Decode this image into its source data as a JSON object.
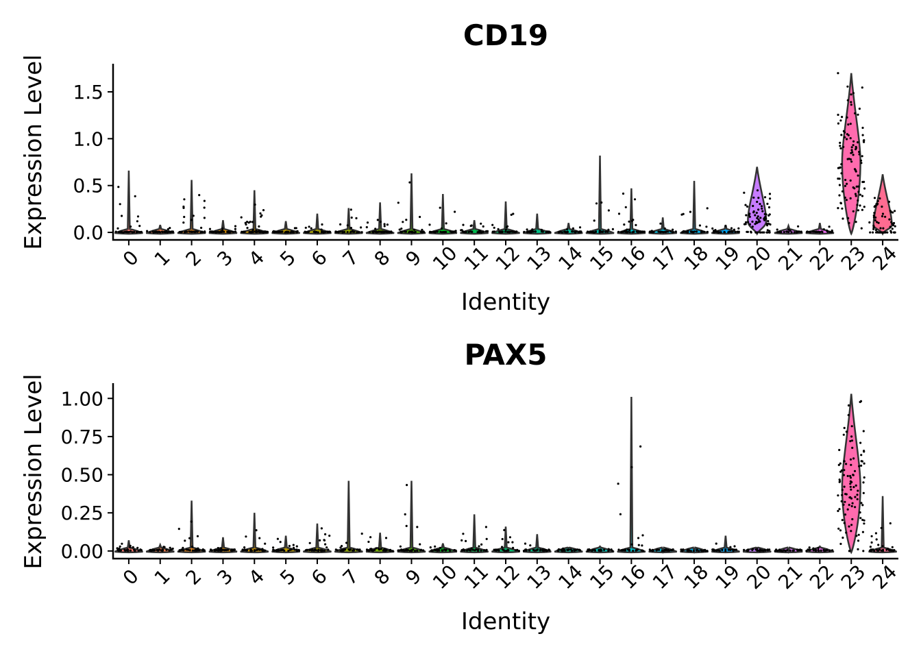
{
  "chart_data": [
    {
      "type": "violin",
      "title": "CD19",
      "xlabel": "Identity",
      "ylabel": "Expression Level",
      "categories": [
        "0",
        "1",
        "2",
        "3",
        "4",
        "5",
        "6",
        "7",
        "8",
        "9",
        "10",
        "11",
        "12",
        "13",
        "14",
        "15",
        "16",
        "17",
        "18",
        "19",
        "20",
        "21",
        "22",
        "23",
        "24"
      ],
      "ylim": [
        -0.08,
        1.8
      ],
      "yticks": [
        0.0,
        0.5,
        1.0,
        1.5
      ],
      "ytick_labels": [
        "0.0",
        "0.5",
        "1.0",
        "1.5"
      ],
      "series": [
        {
          "category": "0",
          "max": 0.66,
          "median": 0.0,
          "fill": "#F8766D",
          "density": 0.1
        },
        {
          "category": "1",
          "max": 0.08,
          "median": 0.0,
          "fill": "#F07E4E",
          "density": 0.1
        },
        {
          "category": "2",
          "max": 0.56,
          "median": 0.0,
          "fill": "#E7861B",
          "density": 0.15
        },
        {
          "category": "3",
          "max": 0.13,
          "median": 0.0,
          "fill": "#DB8E00",
          "density": 0.08
        },
        {
          "category": "4",
          "max": 0.45,
          "median": 0.0,
          "fill": "#CE9600",
          "density": 0.3
        },
        {
          "category": "5",
          "max": 0.12,
          "median": 0.0,
          "fill": "#BE9C00",
          "density": 0.08
        },
        {
          "category": "6",
          "max": 0.2,
          "median": 0.0,
          "fill": "#ABA300",
          "density": 0.08
        },
        {
          "category": "7",
          "max": 0.26,
          "median": 0.0,
          "fill": "#93AA00",
          "density": 0.06
        },
        {
          "category": "8",
          "max": 0.32,
          "median": 0.0,
          "fill": "#76AF00",
          "density": 0.12
        },
        {
          "category": "9",
          "max": 0.63,
          "median": 0.0,
          "fill": "#4BB400",
          "density": 0.1
        },
        {
          "category": "10",
          "max": 0.41,
          "median": 0.0,
          "fill": "#00B81F",
          "density": 0.08
        },
        {
          "category": "11",
          "max": 0.13,
          "median": 0.0,
          "fill": "#00BB4E",
          "density": 0.06
        },
        {
          "category": "12",
          "max": 0.33,
          "median": 0.0,
          "fill": "#00BE6C",
          "density": 0.1
        },
        {
          "category": "13",
          "max": 0.2,
          "median": 0.0,
          "fill": "#00C086",
          "density": 0.08
        },
        {
          "category": "14",
          "max": 0.1,
          "median": 0.0,
          "fill": "#00C19C",
          "density": 0.05
        },
        {
          "category": "15",
          "max": 0.82,
          "median": 0.0,
          "fill": "#00C0B2",
          "density": 0.07
        },
        {
          "category": "16",
          "max": 0.47,
          "median": 0.0,
          "fill": "#00BDC5",
          "density": 0.14
        },
        {
          "category": "17",
          "max": 0.16,
          "median": 0.0,
          "fill": "#00B8D7",
          "density": 0.05
        },
        {
          "category": "18",
          "max": 0.55,
          "median": 0.0,
          "fill": "#00B0E7",
          "density": 0.06
        },
        {
          "category": "19",
          "max": 0.08,
          "median": 0.0,
          "fill": "#00A5F5",
          "density": 0.05
        },
        {
          "category": "20",
          "max": 0.7,
          "median": 0.12,
          "fill": "#C77CFF",
          "density": 0.4
        },
        {
          "category": "21",
          "max": 0.07,
          "median": 0.0,
          "fill": "#DC71FA",
          "density": 0.04
        },
        {
          "category": "22",
          "max": 0.1,
          "median": 0.0,
          "fill": "#EC69EF",
          "density": 0.04
        },
        {
          "category": "23",
          "max": 1.7,
          "median": 0.75,
          "fill": "#FF6BAE",
          "density": 0.6
        },
        {
          "category": "24",
          "max": 0.62,
          "median": 0.08,
          "fill": "#FF6C91",
          "density": 0.3
        }
      ]
    },
    {
      "type": "violin",
      "title": "PAX5",
      "xlabel": "Identity",
      "ylabel": "Expression Level",
      "categories": [
        "0",
        "1",
        "2",
        "3",
        "4",
        "5",
        "6",
        "7",
        "8",
        "9",
        "10",
        "11",
        "12",
        "13",
        "14",
        "15",
        "16",
        "17",
        "18",
        "19",
        "20",
        "21",
        "22",
        "23",
        "24"
      ],
      "ylim": [
        -0.05,
        1.1
      ],
      "yticks": [
        0.0,
        0.25,
        0.5,
        0.75,
        1.0
      ],
      "ytick_labels": [
        "0.00",
        "0.25",
        "0.50",
        "0.75",
        "1.00"
      ],
      "series": [
        {
          "category": "0",
          "max": 0.07,
          "median": 0.0,
          "fill": "#F8766D",
          "density": 0.1
        },
        {
          "category": "1",
          "max": 0.04,
          "median": 0.0,
          "fill": "#F07E4E",
          "density": 0.06
        },
        {
          "category": "2",
          "max": 0.33,
          "median": 0.0,
          "fill": "#E7861B",
          "density": 0.1
        },
        {
          "category": "3",
          "max": 0.09,
          "median": 0.0,
          "fill": "#DB8E00",
          "density": 0.07
        },
        {
          "category": "4",
          "max": 0.25,
          "median": 0.0,
          "fill": "#CE9600",
          "density": 0.08
        },
        {
          "category": "5",
          "max": 0.1,
          "median": 0.0,
          "fill": "#BE9C00",
          "density": 0.07
        },
        {
          "category": "6",
          "max": 0.18,
          "median": 0.0,
          "fill": "#ABA300",
          "density": 0.08
        },
        {
          "category": "7",
          "max": 0.46,
          "median": 0.0,
          "fill": "#93AA00",
          "density": 0.05
        },
        {
          "category": "8",
          "max": 0.12,
          "median": 0.0,
          "fill": "#76AF00",
          "density": 0.07
        },
        {
          "category": "9",
          "max": 0.46,
          "median": 0.0,
          "fill": "#4BB400",
          "density": 0.08
        },
        {
          "category": "10",
          "max": 0.05,
          "median": 0.0,
          "fill": "#00B81F",
          "density": 0.04
        },
        {
          "category": "11",
          "max": 0.24,
          "median": 0.0,
          "fill": "#00BB4E",
          "density": 0.05
        },
        {
          "category": "12",
          "max": 0.16,
          "median": 0.0,
          "fill": "#00BE6C",
          "density": 0.05
        },
        {
          "category": "13",
          "max": 0.11,
          "median": 0.0,
          "fill": "#00C086",
          "density": 0.05
        },
        {
          "category": "14",
          "max": 0.02,
          "median": 0.0,
          "fill": "#00C19C",
          "density": 0.03
        },
        {
          "category": "15",
          "max": 0.03,
          "median": 0.0,
          "fill": "#00C0B2",
          "density": 0.03
        },
        {
          "category": "16",
          "max": 1.01,
          "median": 0.0,
          "fill": "#00BDC5",
          "density": 0.06
        },
        {
          "category": "17",
          "max": 0.0,
          "median": 0.0,
          "fill": "#00B8D7",
          "density": 0.02
        },
        {
          "category": "18",
          "max": 0.0,
          "median": 0.0,
          "fill": "#00B0E7",
          "density": 0.02
        },
        {
          "category": "19",
          "max": 0.1,
          "median": 0.0,
          "fill": "#00A5F5",
          "density": 0.04
        },
        {
          "category": "20",
          "max": 0.02,
          "median": 0.0,
          "fill": "#C77CFF",
          "density": 0.03
        },
        {
          "category": "21",
          "max": 0.0,
          "median": 0.0,
          "fill": "#DC71FA",
          "density": 0.02
        },
        {
          "category": "22",
          "max": 0.03,
          "median": 0.0,
          "fill": "#EC69EF",
          "density": 0.03
        },
        {
          "category": "23",
          "max": 1.03,
          "median": 0.42,
          "fill": "#FF6BAE",
          "density": 0.6
        },
        {
          "category": "24",
          "max": 0.36,
          "median": 0.0,
          "fill": "#FF6C91",
          "density": 0.1
        }
      ]
    }
  ]
}
